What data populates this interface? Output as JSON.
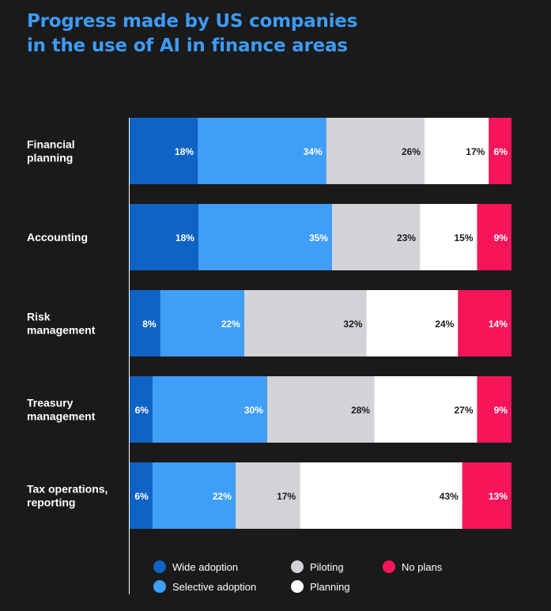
{
  "title_line1": "Progress made by US companies",
  "title_line2": "in the use of AI in finance areas",
  "colors": {
    "background": "#1a1a1a",
    "title": "#3d9bf7",
    "wide_adoption": "#0f63c4",
    "selective_adoption": "#3f9ef7",
    "piloting": "#d1d3d6",
    "planning": "#ffffff",
    "no_plans": "#f7155a"
  },
  "chart_data": {
    "type": "bar",
    "orientation": "horizontal",
    "stacked": true,
    "title": "Progress made by US companies in the use of AI in finance areas",
    "categories": [
      [
        "Financial",
        "planning"
      ],
      [
        "Accounting"
      ],
      [
        "Risk",
        "management"
      ],
      [
        "Treasury",
        "management"
      ],
      [
        "Tax operations,",
        "reporting"
      ]
    ],
    "series": [
      {
        "name": "Wide adoption",
        "color": "#0f63c4",
        "label_color": "#ffffff",
        "values": [
          18,
          18,
          8,
          6,
          6
        ]
      },
      {
        "name": "Selective adoption",
        "color": "#3f9ef7",
        "label_color": "#ffffff",
        "values": [
          34,
          35,
          22,
          30,
          22
        ]
      },
      {
        "name": "Piloting",
        "color": "#d1d3d6",
        "label_color": "#1a1a1a",
        "values": [
          26,
          23,
          32,
          28,
          17
        ]
      },
      {
        "name": "Planning",
        "color": "#ffffff",
        "label_color": "#1a1a1a",
        "values": [
          17,
          15,
          24,
          27,
          43
        ]
      },
      {
        "name": "No plans",
        "color": "#f7155a",
        "label_color": "#ffffff",
        "values": [
          6,
          9,
          14,
          9,
          13
        ]
      }
    ],
    "value_suffix": "%",
    "legend_position": "bottom"
  }
}
